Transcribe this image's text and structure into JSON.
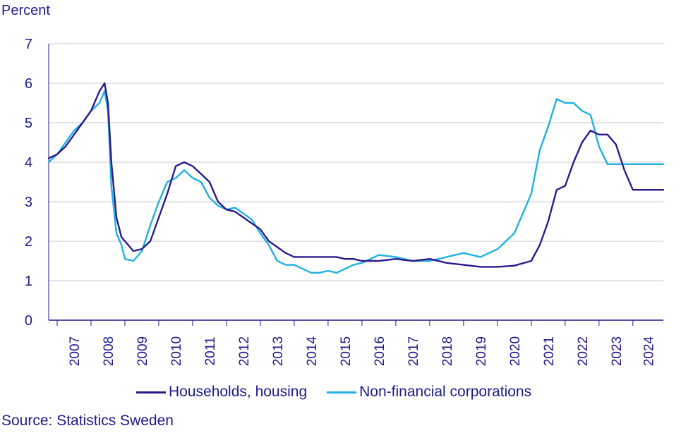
{
  "chart_data": {
    "type": "line",
    "title": "",
    "unit_label": "Percent",
    "ylim": [
      0,
      7
    ],
    "yticks": [
      0,
      1,
      2,
      3,
      4,
      5,
      6,
      7
    ],
    "xlim": [
      2006.75,
      2024.9
    ],
    "years": [
      "2007",
      "2008",
      "2009",
      "2010",
      "2011",
      "2012",
      "2013",
      "2014",
      "2015",
      "2016",
      "2017",
      "2018",
      "2019",
      "2020",
      "2021",
      "2022",
      "2023",
      "2024"
    ],
    "grid": "horizontal",
    "legend_position": "bottom",
    "series": [
      {
        "name": "Households, housing",
        "color": "#2b1a8c",
        "x": [
          2006.75,
          2007.0,
          2007.25,
          2007.5,
          2007.75,
          2008.0,
          2008.25,
          2008.4,
          2008.5,
          2008.6,
          2008.75,
          2008.9,
          2009.0,
          2009.25,
          2009.5,
          2009.75,
          2010.0,
          2010.25,
          2010.5,
          2010.75,
          2011.0,
          2011.25,
          2011.5,
          2011.75,
          2012.0,
          2012.25,
          2012.5,
          2012.75,
          2013.0,
          2013.25,
          2013.5,
          2013.75,
          2014.0,
          2014.25,
          2014.5,
          2014.75,
          2015.0,
          2015.25,
          2015.5,
          2015.75,
          2016.0,
          2016.5,
          2017.0,
          2017.5,
          2018.0,
          2018.5,
          2019.0,
          2019.5,
          2020.0,
          2020.5,
          2021.0,
          2021.25,
          2021.5,
          2021.75,
          2022.0,
          2022.25,
          2022.5,
          2022.75,
          2023.0,
          2023.25,
          2023.5,
          2023.75,
          2024.0,
          2024.25,
          2024.5,
          2024.75,
          2024.9
        ],
        "values": [
          4.1,
          4.2,
          4.4,
          4.7,
          5.0,
          5.3,
          5.8,
          6.0,
          5.5,
          4.0,
          2.6,
          2.1,
          2.0,
          1.75,
          1.8,
          2.0,
          2.6,
          3.2,
          3.9,
          4.0,
          3.9,
          3.7,
          3.5,
          3.0,
          2.8,
          2.75,
          2.6,
          2.45,
          2.3,
          2.0,
          1.85,
          1.7,
          1.6,
          1.6,
          1.6,
          1.6,
          1.6,
          1.6,
          1.55,
          1.55,
          1.5,
          1.5,
          1.55,
          1.5,
          1.55,
          1.45,
          1.4,
          1.35,
          1.35,
          1.38,
          1.5,
          1.9,
          2.5,
          3.3,
          3.4,
          4.0,
          4.5,
          4.8,
          4.7,
          4.7,
          4.45,
          3.8,
          3.3,
          3.3,
          3.3,
          3.3,
          3.3
        ]
      },
      {
        "name": "Non-financial corporations",
        "color": "#1fb1e0",
        "x": [
          2006.75,
          2007.0,
          2007.25,
          2007.5,
          2007.75,
          2008.0,
          2008.25,
          2008.4,
          2008.5,
          2008.6,
          2008.75,
          2008.9,
          2009.0,
          2009.25,
          2009.5,
          2009.75,
          2010.0,
          2010.25,
          2010.5,
          2010.75,
          2011.0,
          2011.25,
          2011.5,
          2011.75,
          2012.0,
          2012.25,
          2012.5,
          2012.75,
          2013.0,
          2013.25,
          2013.5,
          2013.75,
          2014.0,
          2014.25,
          2014.5,
          2014.75,
          2015.0,
          2015.25,
          2015.5,
          2015.75,
          2016.0,
          2016.5,
          2017.0,
          2017.5,
          2018.0,
          2018.5,
          2019.0,
          2019.5,
          2020.0,
          2020.5,
          2021.0,
          2021.25,
          2021.5,
          2021.75,
          2022.0,
          2022.25,
          2022.5,
          2022.75,
          2023.0,
          2023.25,
          2023.5,
          2023.75,
          2024.0,
          2024.25,
          2024.5,
          2024.75,
          2024.9
        ],
        "values": [
          4.0,
          4.2,
          4.5,
          4.8,
          5.0,
          5.3,
          5.5,
          5.8,
          5.3,
          3.4,
          2.2,
          1.9,
          1.55,
          1.5,
          1.75,
          2.4,
          3.0,
          3.5,
          3.6,
          3.8,
          3.6,
          3.5,
          3.1,
          2.9,
          2.8,
          2.85,
          2.7,
          2.55,
          2.2,
          1.9,
          1.5,
          1.4,
          1.4,
          1.3,
          1.2,
          1.2,
          1.25,
          1.2,
          1.3,
          1.4,
          1.45,
          1.65,
          1.6,
          1.5,
          1.5,
          1.6,
          1.7,
          1.6,
          1.8,
          2.2,
          3.2,
          4.3,
          4.9,
          5.6,
          5.5,
          5.5,
          5.3,
          5.2,
          4.4,
          3.95,
          3.95,
          3.95,
          3.95,
          3.95,
          3.95,
          3.95,
          3.95
        ]
      }
    ]
  },
  "source": "Source: Statistics Sweden"
}
